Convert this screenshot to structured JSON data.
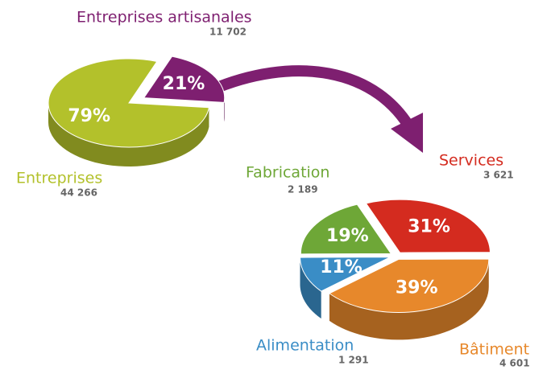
{
  "chart_data": [
    {
      "type": "pie",
      "categories": [
        "Entreprises",
        "Entreprises artisanales"
      ],
      "values": [
        79,
        21
      ],
      "value_labels": [
        "79%",
        "21%"
      ],
      "counts": [
        44266,
        11702
      ],
      "count_labels": [
        "44 266",
        "11 702"
      ],
      "colors": [
        "#b3c12b",
        "#7e1f70"
      ]
    },
    {
      "type": "pie",
      "categories": [
        "Services",
        "Bâtiment",
        "Alimentation",
        "Fabrication"
      ],
      "values": [
        31,
        39,
        11,
        19
      ],
      "value_labels": [
        "31%",
        "39%",
        "11%",
        "19%"
      ],
      "counts": [
        3621,
        4601,
        1291,
        2189
      ],
      "count_labels": [
        "3 621",
        "4 601",
        "1 291",
        "2 189"
      ],
      "colors": [
        "#d42b1f",
        "#e7882b",
        "#3a8dc6",
        "#6ea737"
      ]
    }
  ]
}
